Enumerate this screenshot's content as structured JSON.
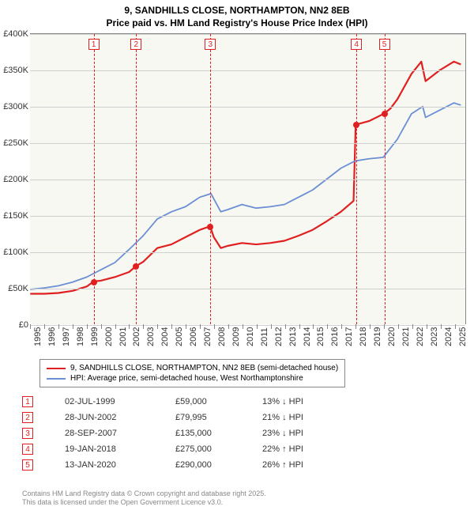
{
  "title": {
    "line1": "9, SANDHILLS CLOSE, NORTHAMPTON, NN2 8EB",
    "line2": "Price paid vs. HM Land Registry's House Price Index (HPI)"
  },
  "chart": {
    "type": "line",
    "background_color": "#f8f8f2",
    "grid_color": "#d0d0d0",
    "axis_color": "#888888",
    "label_fontsize": 11,
    "xlim": [
      1995,
      2025.8
    ],
    "ylim": [
      0,
      400000
    ],
    "ytick_step": 50000,
    "yticks": [
      "£0",
      "£50K",
      "£100K",
      "£150K",
      "£200K",
      "£250K",
      "£300K",
      "£350K",
      "£400K"
    ],
    "xticks": [
      1995,
      1996,
      1997,
      1998,
      1999,
      2000,
      2001,
      2002,
      2003,
      2004,
      2005,
      2006,
      2007,
      2008,
      2009,
      2010,
      2011,
      2012,
      2013,
      2014,
      2015,
      2016,
      2017,
      2018,
      2019,
      2020,
      2021,
      2022,
      2023,
      2024,
      2025
    ],
    "series": [
      {
        "name": "price_paid",
        "color": "#e02020",
        "width": 2.2,
        "points": [
          [
            1995,
            42000
          ],
          [
            1996,
            42000
          ],
          [
            1997,
            43000
          ],
          [
            1998,
            46000
          ],
          [
            1999,
            52000
          ],
          [
            1999.5,
            59000
          ],
          [
            2000,
            60000
          ],
          [
            2001,
            65000
          ],
          [
            2002,
            72000
          ],
          [
            2002.49,
            79995
          ],
          [
            2003,
            86000
          ],
          [
            2004,
            105000
          ],
          [
            2005,
            110000
          ],
          [
            2006,
            120000
          ],
          [
            2007,
            130000
          ],
          [
            2007.74,
            135000
          ],
          [
            2008,
            120000
          ],
          [
            2008.5,
            105000
          ],
          [
            2009,
            108000
          ],
          [
            2010,
            112000
          ],
          [
            2011,
            110000
          ],
          [
            2012,
            112000
          ],
          [
            2013,
            115000
          ],
          [
            2014,
            122000
          ],
          [
            2015,
            130000
          ],
          [
            2016,
            142000
          ],
          [
            2017,
            155000
          ],
          [
            2017.9,
            170000
          ],
          [
            2018.05,
            275000
          ],
          [
            2019,
            280000
          ],
          [
            2020.03,
            290000
          ],
          [
            2020.5,
            297000
          ],
          [
            2021,
            310000
          ],
          [
            2022,
            345000
          ],
          [
            2022.7,
            362000
          ],
          [
            2023,
            335000
          ],
          [
            2024,
            350000
          ],
          [
            2025,
            362000
          ],
          [
            2025.5,
            358000
          ]
        ]
      },
      {
        "name": "hpi",
        "color": "#6b8fd4",
        "width": 1.8,
        "points": [
          [
            1995,
            48000
          ],
          [
            1996,
            50000
          ],
          [
            1997,
            53000
          ],
          [
            1998,
            58000
          ],
          [
            1999,
            65000
          ],
          [
            2000,
            75000
          ],
          [
            2001,
            85000
          ],
          [
            2002,
            103000
          ],
          [
            2003,
            122000
          ],
          [
            2004,
            145000
          ],
          [
            2005,
            155000
          ],
          [
            2006,
            162000
          ],
          [
            2007,
            175000
          ],
          [
            2007.8,
            180000
          ],
          [
            2008.5,
            155000
          ],
          [
            2009,
            158000
          ],
          [
            2010,
            165000
          ],
          [
            2011,
            160000
          ],
          [
            2012,
            162000
          ],
          [
            2013,
            165000
          ],
          [
            2014,
            175000
          ],
          [
            2015,
            185000
          ],
          [
            2016,
            200000
          ],
          [
            2017,
            215000
          ],
          [
            2018,
            225000
          ],
          [
            2019,
            228000
          ],
          [
            2020,
            230000
          ],
          [
            2021,
            255000
          ],
          [
            2022,
            290000
          ],
          [
            2022.8,
            300000
          ],
          [
            2023,
            285000
          ],
          [
            2024,
            295000
          ],
          [
            2025,
            305000
          ],
          [
            2025.5,
            302000
          ]
        ]
      }
    ],
    "markers": [
      {
        "n": "1",
        "year": 1999.5,
        "value": 59000
      },
      {
        "n": "2",
        "year": 2002.49,
        "value": 79995
      },
      {
        "n": "3",
        "year": 2007.74,
        "value": 135000
      },
      {
        "n": "4",
        "year": 2018.05,
        "value": 275000
      },
      {
        "n": "5",
        "year": 2020.03,
        "value": 290000
      }
    ]
  },
  "legend": [
    {
      "color": "#e02020",
      "label": "9, SANDHILLS CLOSE, NORTHAMPTON, NN2 8EB (semi-detached house)"
    },
    {
      "color": "#6b8fd4",
      "label": "HPI: Average price, semi-detached house, West Northamptonshire"
    }
  ],
  "sales": [
    {
      "n": "1",
      "date": "02-JUL-1999",
      "price": "£59,000",
      "diff": "13% ↓ HPI"
    },
    {
      "n": "2",
      "date": "28-JUN-2002",
      "price": "£79,995",
      "diff": "21% ↓ HPI"
    },
    {
      "n": "3",
      "date": "28-SEP-2007",
      "price": "£135,000",
      "diff": "23% ↓ HPI"
    },
    {
      "n": "4",
      "date": "19-JAN-2018",
      "price": "£275,000",
      "diff": "22% ↑ HPI"
    },
    {
      "n": "5",
      "date": "13-JAN-2020",
      "price": "£290,000",
      "diff": "26% ↑ HPI"
    }
  ],
  "footer": {
    "line1": "Contains HM Land Registry data © Crown copyright and database right 2025.",
    "line2": "This data is licensed under the Open Government Licence v3.0."
  }
}
